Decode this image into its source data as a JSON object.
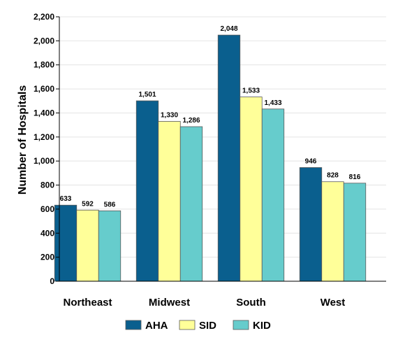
{
  "chart_data": {
    "type": "bar",
    "title": "",
    "xlabel": "",
    "ylabel": "Number of Hospitals",
    "categories": [
      "Northeast",
      "Midwest",
      "South",
      "West"
    ],
    "series": [
      {
        "name": "AHA",
        "color": "#0a5f8e",
        "values": [
          633,
          1501,
          2048,
          946
        ],
        "labels": [
          "633",
          "1,501",
          "2,048",
          "946"
        ]
      },
      {
        "name": "SID",
        "color": "#ffff99",
        "values": [
          592,
          1330,
          1533,
          828
        ],
        "labels": [
          "592",
          "1,330",
          "1,533",
          "828"
        ]
      },
      {
        "name": "KID",
        "color": "#66cccc",
        "values": [
          586,
          1286,
          1433,
          816
        ],
        "labels": [
          "586",
          "1,286",
          "1,433",
          "816"
        ]
      }
    ],
    "ylim": [
      0,
      2200
    ],
    "yticks": [
      0,
      200,
      400,
      600,
      800,
      1000,
      1200,
      1400,
      1600,
      1800,
      2000,
      2200
    ],
    "ytick_labels": [
      "0",
      "200",
      "400",
      "600",
      "800",
      "1,000",
      "1,200",
      "1,400",
      "1,600",
      "1,800",
      "2,000",
      "2,200"
    ],
    "grid": true,
    "legend_position": "bottom"
  }
}
